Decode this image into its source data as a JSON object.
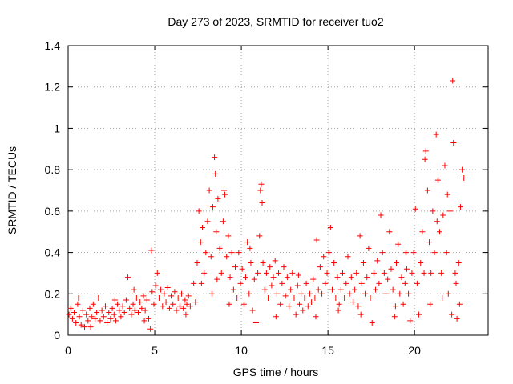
{
  "chart_data": {
    "type": "scatter",
    "title": "Day 273 of 2023, SRMTID for receiver tuo2",
    "xlabel": "GPS time / hours",
    "ylabel": "SRMTID / TECUs",
    "xlim": [
      0,
      24.25
    ],
    "ylim": [
      0,
      1.4
    ],
    "xticks": [
      0,
      5,
      10,
      15,
      20
    ],
    "xtick_labels": [
      "0",
      "5",
      "10",
      "15",
      "20"
    ],
    "yticks": [
      0,
      0.2,
      0.4,
      0.6,
      0.8,
      1.0,
      1.2,
      1.4
    ],
    "ytick_labels": [
      "0",
      "0.2",
      "0.4",
      "0.6",
      "0.8",
      "1",
      "1.2",
      "1.4"
    ],
    "grid": true,
    "marker": "+",
    "color": "#ff0000",
    "series": [
      {
        "name": "SRMTID",
        "points": [
          [
            0.05,
            0.1
          ],
          [
            0.15,
            0.13
          ],
          [
            0.25,
            0.08
          ],
          [
            0.35,
            0.11
          ],
          [
            0.45,
            0.06
          ],
          [
            0.55,
            0.15
          ],
          [
            0.65,
            0.09
          ],
          [
            0.75,
            0.05
          ],
          [
            0.85,
            0.12
          ],
          [
            0.95,
            0.04
          ],
          [
            1.05,
            0.1
          ],
          [
            1.15,
            0.07
          ],
          [
            1.25,
            0.13
          ],
          [
            1.35,
            0.09
          ],
          [
            1.45,
            0.15
          ],
          [
            1.55,
            0.08
          ],
          [
            1.65,
            0.11
          ],
          [
            1.75,
            0.18
          ],
          [
            1.85,
            0.07
          ],
          [
            1.95,
            0.12
          ],
          [
            2.05,
            0.09
          ],
          [
            2.15,
            0.14
          ],
          [
            2.25,
            0.06
          ],
          [
            2.35,
            0.11
          ],
          [
            2.45,
            0.08
          ],
          [
            2.55,
            0.13
          ],
          [
            2.65,
            0.1
          ],
          [
            2.75,
            0.07
          ],
          [
            2.85,
            0.15
          ],
          [
            2.95,
            0.12
          ],
          [
            3.05,
            0.09
          ],
          [
            3.15,
            0.14
          ],
          [
            3.25,
            0.11
          ],
          [
            3.35,
            0.17
          ],
          [
            3.45,
            0.28
          ],
          [
            3.55,
            0.13
          ],
          [
            3.65,
            0.1
          ],
          [
            3.75,
            0.15
          ],
          [
            3.85,
            0.12
          ],
          [
            3.95,
            0.18
          ],
          [
            4.05,
            0.11
          ],
          [
            4.15,
            0.16
          ],
          [
            4.25,
            0.13
          ],
          [
            4.35,
            0.19
          ],
          [
            4.45,
            0.12
          ],
          [
            4.55,
            0.17
          ],
          [
            4.65,
            0.08
          ],
          [
            4.75,
            0.03
          ],
          [
            4.8,
            0.41
          ],
          [
            4.85,
            0.21
          ],
          [
            4.95,
            0.15
          ],
          [
            5.05,
            0.24
          ],
          [
            5.15,
            0.3
          ],
          [
            5.25,
            0.18
          ],
          [
            5.35,
            0.22
          ],
          [
            5.45,
            0.14
          ],
          [
            5.55,
            0.2
          ],
          [
            5.65,
            0.16
          ],
          [
            5.75,
            0.23
          ],
          [
            5.85,
            0.13
          ],
          [
            5.95,
            0.19
          ],
          [
            6.05,
            0.15
          ],
          [
            6.15,
            0.21
          ],
          [
            6.25,
            0.12
          ],
          [
            6.35,
            0.18
          ],
          [
            6.45,
            0.14
          ],
          [
            6.55,
            0.2
          ],
          [
            6.65,
            0.13
          ],
          [
            6.75,
            0.17
          ],
          [
            6.85,
            0.15
          ],
          [
            6.95,
            0.19
          ],
          [
            7.05,
            0.14
          ],
          [
            7.15,
            0.18
          ],
          [
            7.25,
            0.25
          ],
          [
            7.35,
            0.16
          ],
          [
            7.45,
            0.35
          ],
          [
            7.55,
            0.6
          ],
          [
            7.65,
            0.45
          ],
          [
            7.75,
            0.52
          ],
          [
            7.85,
            0.3
          ],
          [
            7.95,
            0.4
          ],
          [
            8.05,
            0.55
          ],
          [
            8.15,
            0.7
          ],
          [
            8.25,
            0.38
          ],
          [
            8.35,
            0.62
          ],
          [
            8.45,
            0.86
          ],
          [
            8.5,
            0.78
          ],
          [
            8.55,
            0.5
          ],
          [
            8.65,
            0.66
          ],
          [
            8.75,
            0.42
          ],
          [
            8.85,
            0.3
          ],
          [
            8.95,
            0.55
          ],
          [
            9.05,
            0.68
          ],
          [
            9.15,
            0.38
          ],
          [
            9.25,
            0.48
          ],
          [
            9.35,
            0.28
          ],
          [
            9.45,
            0.4
          ],
          [
            9.55,
            0.22
          ],
          [
            9.65,
            0.33
          ],
          [
            9.75,
            0.18
          ],
          [
            9.85,
            0.4
          ],
          [
            9.95,
            0.25
          ],
          [
            10.05,
            0.32
          ],
          [
            10.15,
            0.15
          ],
          [
            10.25,
            0.28
          ],
          [
            10.35,
            0.45
          ],
          [
            10.45,
            0.2
          ],
          [
            10.55,
            0.35
          ],
          [
            10.65,
            0.12
          ],
          [
            10.75,
            0.27
          ],
          [
            10.85,
            0.06
          ],
          [
            10.95,
            0.3
          ],
          [
            11.05,
            0.48
          ],
          [
            11.15,
            0.73
          ],
          [
            11.2,
            0.64
          ],
          [
            11.25,
            0.35
          ],
          [
            11.35,
            0.22
          ],
          [
            11.45,
            0.3
          ],
          [
            11.55,
            0.18
          ],
          [
            11.65,
            0.33
          ],
          [
            11.75,
            0.24
          ],
          [
            11.85,
            0.28
          ],
          [
            11.95,
            0.36
          ],
          [
            12.05,
            0.2
          ],
          [
            12.15,
            0.3
          ],
          [
            12.25,
            0.15
          ],
          [
            12.35,
            0.25
          ],
          [
            12.45,
            0.33
          ],
          [
            12.55,
            0.19
          ],
          [
            12.65,
            0.28
          ],
          [
            12.75,
            0.14
          ],
          [
            12.85,
            0.22
          ],
          [
            12.95,
            0.3
          ],
          [
            13.05,
            0.18
          ],
          [
            13.15,
            0.1
          ],
          [
            13.25,
            0.24
          ],
          [
            13.35,
            0.15
          ],
          [
            13.45,
            0.2
          ],
          [
            13.55,
            0.12
          ],
          [
            13.65,
            0.18
          ],
          [
            13.75,
            0.25
          ],
          [
            13.85,
            0.14
          ],
          [
            13.95,
            0.2
          ],
          [
            14.05,
            0.16
          ],
          [
            14.15,
            0.27
          ],
          [
            14.25,
            0.18
          ],
          [
            14.35,
            0.46
          ],
          [
            14.45,
            0.22
          ],
          [
            14.55,
            0.33
          ],
          [
            14.65,
            0.2
          ],
          [
            14.75,
            0.38
          ],
          [
            14.85,
            0.25
          ],
          [
            14.95,
            0.3
          ],
          [
            15.05,
            0.4
          ],
          [
            15.15,
            0.52
          ],
          [
            15.25,
            0.22
          ],
          [
            15.35,
            0.35
          ],
          [
            15.45,
            0.18
          ],
          [
            15.55,
            0.28
          ],
          [
            15.65,
            0.15
          ],
          [
            15.75,
            0.22
          ],
          [
            15.85,
            0.3
          ],
          [
            15.95,
            0.18
          ],
          [
            16.05,
            0.25
          ],
          [
            16.15,
            0.38
          ],
          [
            16.25,
            0.2
          ],
          [
            16.35,
            0.28
          ],
          [
            16.45,
            0.16
          ],
          [
            16.55,
            0.22
          ],
          [
            16.65,
            0.3
          ],
          [
            16.75,
            0.14
          ],
          [
            16.85,
            0.48
          ],
          [
            16.95,
            0.25
          ],
          [
            17.05,
            0.35
          ],
          [
            17.15,
            0.2
          ],
          [
            17.25,
            0.28
          ],
          [
            17.35,
            0.42
          ],
          [
            17.45,
            0.18
          ],
          [
            17.55,
            0.06
          ],
          [
            17.65,
            0.3
          ],
          [
            17.75,
            0.22
          ],
          [
            17.85,
            0.36
          ],
          [
            17.95,
            0.25
          ],
          [
            18.05,
            0.58
          ],
          [
            18.15,
            0.4
          ],
          [
            18.25,
            0.3
          ],
          [
            18.35,
            0.2
          ],
          [
            18.45,
            0.27
          ],
          [
            18.55,
            0.5
          ],
          [
            18.65,
            0.32
          ],
          [
            18.75,
            0.22
          ],
          [
            18.85,
            0.09
          ],
          [
            18.95,
            0.35
          ],
          [
            19.05,
            0.44
          ],
          [
            19.15,
            0.2
          ],
          [
            19.25,
            0.28
          ],
          [
            19.35,
            0.15
          ],
          [
            19.45,
            0.25
          ],
          [
            19.55,
            0.32
          ],
          [
            19.65,
            0.2
          ],
          [
            19.75,
            0.07
          ],
          [
            19.85,
            0.3
          ],
          [
            19.95,
            0.4
          ],
          [
            20.05,
            0.61
          ],
          [
            20.15,
            0.25
          ],
          [
            20.25,
            0.1
          ],
          [
            20.35,
            0.35
          ],
          [
            20.45,
            0.5
          ],
          [
            20.55,
            0.3
          ],
          [
            20.65,
            0.89
          ],
          [
            20.75,
            0.7
          ],
          [
            20.85,
            0.45
          ],
          [
            20.95,
            0.3
          ],
          [
            21.05,
            0.6
          ],
          [
            21.15,
            0.4
          ],
          [
            21.25,
            0.97
          ],
          [
            21.35,
            0.75
          ],
          [
            21.45,
            0.5
          ],
          [
            21.55,
            0.3
          ],
          [
            21.65,
            0.58
          ],
          [
            21.75,
            0.82
          ],
          [
            21.85,
            0.4
          ],
          [
            21.95,
            0.2
          ],
          [
            22.05,
            0.6
          ],
          [
            22.15,
            0.1
          ],
          [
            22.2,
            1.23
          ],
          [
            22.25,
            0.93
          ],
          [
            22.35,
            0.3
          ],
          [
            22.45,
            0.08
          ],
          [
            22.55,
            0.35
          ],
          [
            22.65,
            0.62
          ],
          [
            22.75,
            0.8
          ],
          [
            22.85,
            0.76
          ],
          [
            0.6,
            0.18
          ],
          [
            1.3,
            0.04
          ],
          [
            2.7,
            0.17
          ],
          [
            3.8,
            0.22
          ],
          [
            4.4,
            0.07
          ],
          [
            6.8,
            0.1
          ],
          [
            7.7,
            0.25
          ],
          [
            8.3,
            0.2
          ],
          [
            9.3,
            0.15
          ],
          [
            10.5,
            0.42
          ],
          [
            12.0,
            0.09
          ],
          [
            13.3,
            0.29
          ],
          [
            14.3,
            0.09
          ],
          [
            15.6,
            0.12
          ],
          [
            16.9,
            0.1
          ],
          [
            18.9,
            0.14
          ],
          [
            20.9,
            0.15
          ],
          [
            21.6,
            0.18
          ],
          [
            22.4,
            0.25
          ],
          [
            22.6,
            0.15
          ],
          [
            21.9,
            0.68
          ],
          [
            20.6,
            0.85
          ],
          [
            21.3,
            0.55
          ],
          [
            19.5,
            0.4
          ],
          [
            8.6,
            0.27
          ],
          [
            9.0,
            0.7
          ],
          [
            11.1,
            0.7
          ]
        ]
      }
    ]
  }
}
